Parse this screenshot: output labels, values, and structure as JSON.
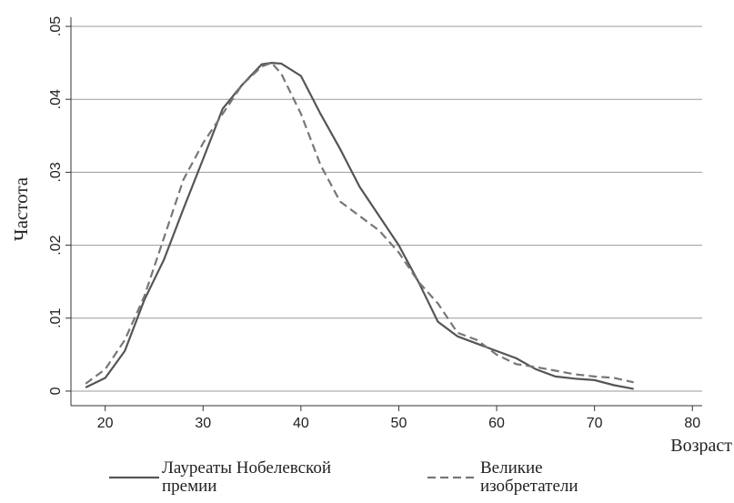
{
  "chart_data": {
    "type": "line",
    "y_label": "Частота",
    "x_label": "Возраст",
    "x": [
      18,
      20,
      22,
      24,
      26,
      28,
      30,
      32,
      34,
      36,
      37,
      38,
      40,
      42,
      44,
      46,
      48,
      50,
      52,
      54,
      56,
      58,
      60,
      62,
      64,
      66,
      68,
      70,
      72,
      74
    ],
    "series": [
      {
        "name": "Лауреаты Нобелевской премии",
        "color": "#555555",
        "dash": "solid",
        "values": [
          0.0005,
          0.0018,
          0.0055,
          0.0125,
          0.018,
          0.025,
          0.0318,
          0.0387,
          0.042,
          0.0448,
          0.045,
          0.0449,
          0.0432,
          0.038,
          0.0332,
          0.028,
          0.024,
          0.02,
          0.015,
          0.0095,
          0.0075,
          0.0065,
          0.0055,
          0.0045,
          0.003,
          0.002,
          0.0017,
          0.0015,
          0.0008,
          0.0003
        ]
      },
      {
        "name": "Великие изобретатели",
        "color": "#777777",
        "dash": "dashed",
        "values": [
          0.001,
          0.003,
          0.007,
          0.013,
          0.021,
          0.029,
          0.034,
          0.038,
          0.042,
          0.0445,
          0.045,
          0.0435,
          0.038,
          0.031,
          0.026,
          0.024,
          0.022,
          0.019,
          0.015,
          0.012,
          0.008,
          0.007,
          0.005,
          0.0037,
          0.0033,
          0.0028,
          0.0023,
          0.002,
          0.0018,
          0.0012
        ]
      }
    ],
    "xlim": [
      16.5,
      81
    ],
    "xticks": [
      20,
      30,
      40,
      50,
      60,
      70,
      80
    ],
    "ylim": [
      -0.002,
      0.05
    ],
    "yticks": [
      0,
      {
        "value": 0.01,
        "label": ".01"
      },
      {
        "value": 0.02,
        "label": ".02"
      },
      {
        "value": 0.03,
        "label": ".03"
      },
      {
        "value": 0.04,
        "label": ".04"
      },
      {
        "value": 0.05,
        "label": ".05"
      }
    ],
    "grid": true
  }
}
